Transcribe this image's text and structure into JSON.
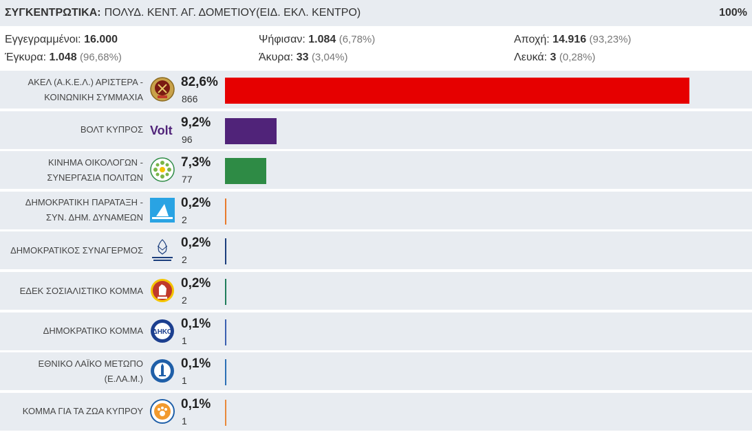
{
  "header": {
    "label": "ΣΥΓΚΕΝΤΡΩΤΙΚΑ:",
    "location": "ΠΟΛΥΔ. ΚΕΝΤ. ΑΓ. ΔΟΜΕΤΙΟΥ(ΕΙΔ. ΕΚΛ. ΚΕΝΤΡΟ)",
    "percent_counted": "100%"
  },
  "stats": {
    "registered_label": "Εγγεγραμμένοι:",
    "registered_value": "16.000",
    "voted_label": "Ψήφισαν:",
    "voted_value": "1.084",
    "voted_pct": "(6,78%)",
    "abstention_label": "Αποχή:",
    "abstention_value": "14.916",
    "abstention_pct": "(93,23%)",
    "valid_label": "Έγκυρα:",
    "valid_value": "1.048",
    "valid_pct": "(96,68%)",
    "invalid_label": "Άκυρα:",
    "invalid_value": "33",
    "invalid_pct": "(3,04%)",
    "blank_label": "Λευκά:",
    "blank_value": "3",
    "blank_pct": "(0,28%)"
  },
  "parties": [
    {
      "name_line1": "ΑΚΕΛ (Α.Κ.Ε.Λ.) ΑΡΙΣΤΕΡΑ -",
      "name_line2": "ΚΟΙΝΩΝΙΚΗ ΣΥΜΜΑΧΙΑ",
      "percent": "82,6%",
      "pct_value": 82.6,
      "votes": "866",
      "color": "#e60000",
      "icon": "akel-logo-icon"
    },
    {
      "name_line1": "ΒΟΛΤ ΚΥΠΡΟΣ",
      "name_line2": "",
      "percent": "9,2%",
      "pct_value": 9.2,
      "votes": "96",
      "color": "#502379",
      "icon": "volt-logo-icon",
      "logo_text": "Volt"
    },
    {
      "name_line1": "ΚΙΝΗΜΑ ΟΙΚΟΛΟΓΩΝ -",
      "name_line2": "ΣΥΝΕΡΓΑΣΙΑ ΠΟΛΙΤΩΝ",
      "percent": "7,3%",
      "pct_value": 7.3,
      "votes": "77",
      "color": "#2e8b45",
      "icon": "ecologists-logo-icon"
    },
    {
      "name_line1": "ΔΗΜΟΚΡΑΤΙΚΗ ΠΑΡΑΤΑΞΗ -",
      "name_line2": "ΣΥΝ. ΔΗΜ. ΔΥΝΑΜΕΩΝ",
      "percent": "0,2%",
      "pct_value": 0.2,
      "votes": "2",
      "color": "#e87a2b",
      "icon": "dipa-logo-icon"
    },
    {
      "name_line1": "ΔΗΜΟΚΡΑΤΙΚΟΣ ΣΥΝΑΓΕΡΜΟΣ",
      "name_line2": "",
      "percent": "0,2%",
      "pct_value": 0.2,
      "votes": "2",
      "color": "#1a3d7c",
      "icon": "disy-logo-icon"
    },
    {
      "name_line1": "ΕΔΕΚ ΣΟΣΙΑΛΙΣΤΙΚΟ ΚΟΜΜΑ",
      "name_line2": "",
      "percent": "0,2%",
      "pct_value": 0.2,
      "votes": "2",
      "color": "#1e7d5a",
      "icon": "edek-logo-icon"
    },
    {
      "name_line1": "ΔΗΜΟΚΡΑΤΙΚΟ ΚΟΜΜΑ",
      "name_line2": "",
      "percent": "0,1%",
      "pct_value": 0.1,
      "votes": "1",
      "color": "#3a5fb0",
      "icon": "diko-logo-icon"
    },
    {
      "name_line1": "ΕΘΝΙΚΟ ΛΑΪΚΟ ΜΕΤΩΠΟ",
      "name_line2": "(Ε.ΛΑ.Μ.)",
      "percent": "0,1%",
      "pct_value": 0.1,
      "votes": "1",
      "color": "#2a6fb5",
      "icon": "elam-logo-icon"
    },
    {
      "name_line1": "ΚΟΜΜΑ ΓΙΑ ΤΑ ΖΩΑ ΚΥΠΡΟΥ",
      "name_line2": "",
      "percent": "0,1%",
      "pct_value": 0.1,
      "votes": "1",
      "color": "#e8893a",
      "icon": "animal-party-logo-icon"
    }
  ]
}
